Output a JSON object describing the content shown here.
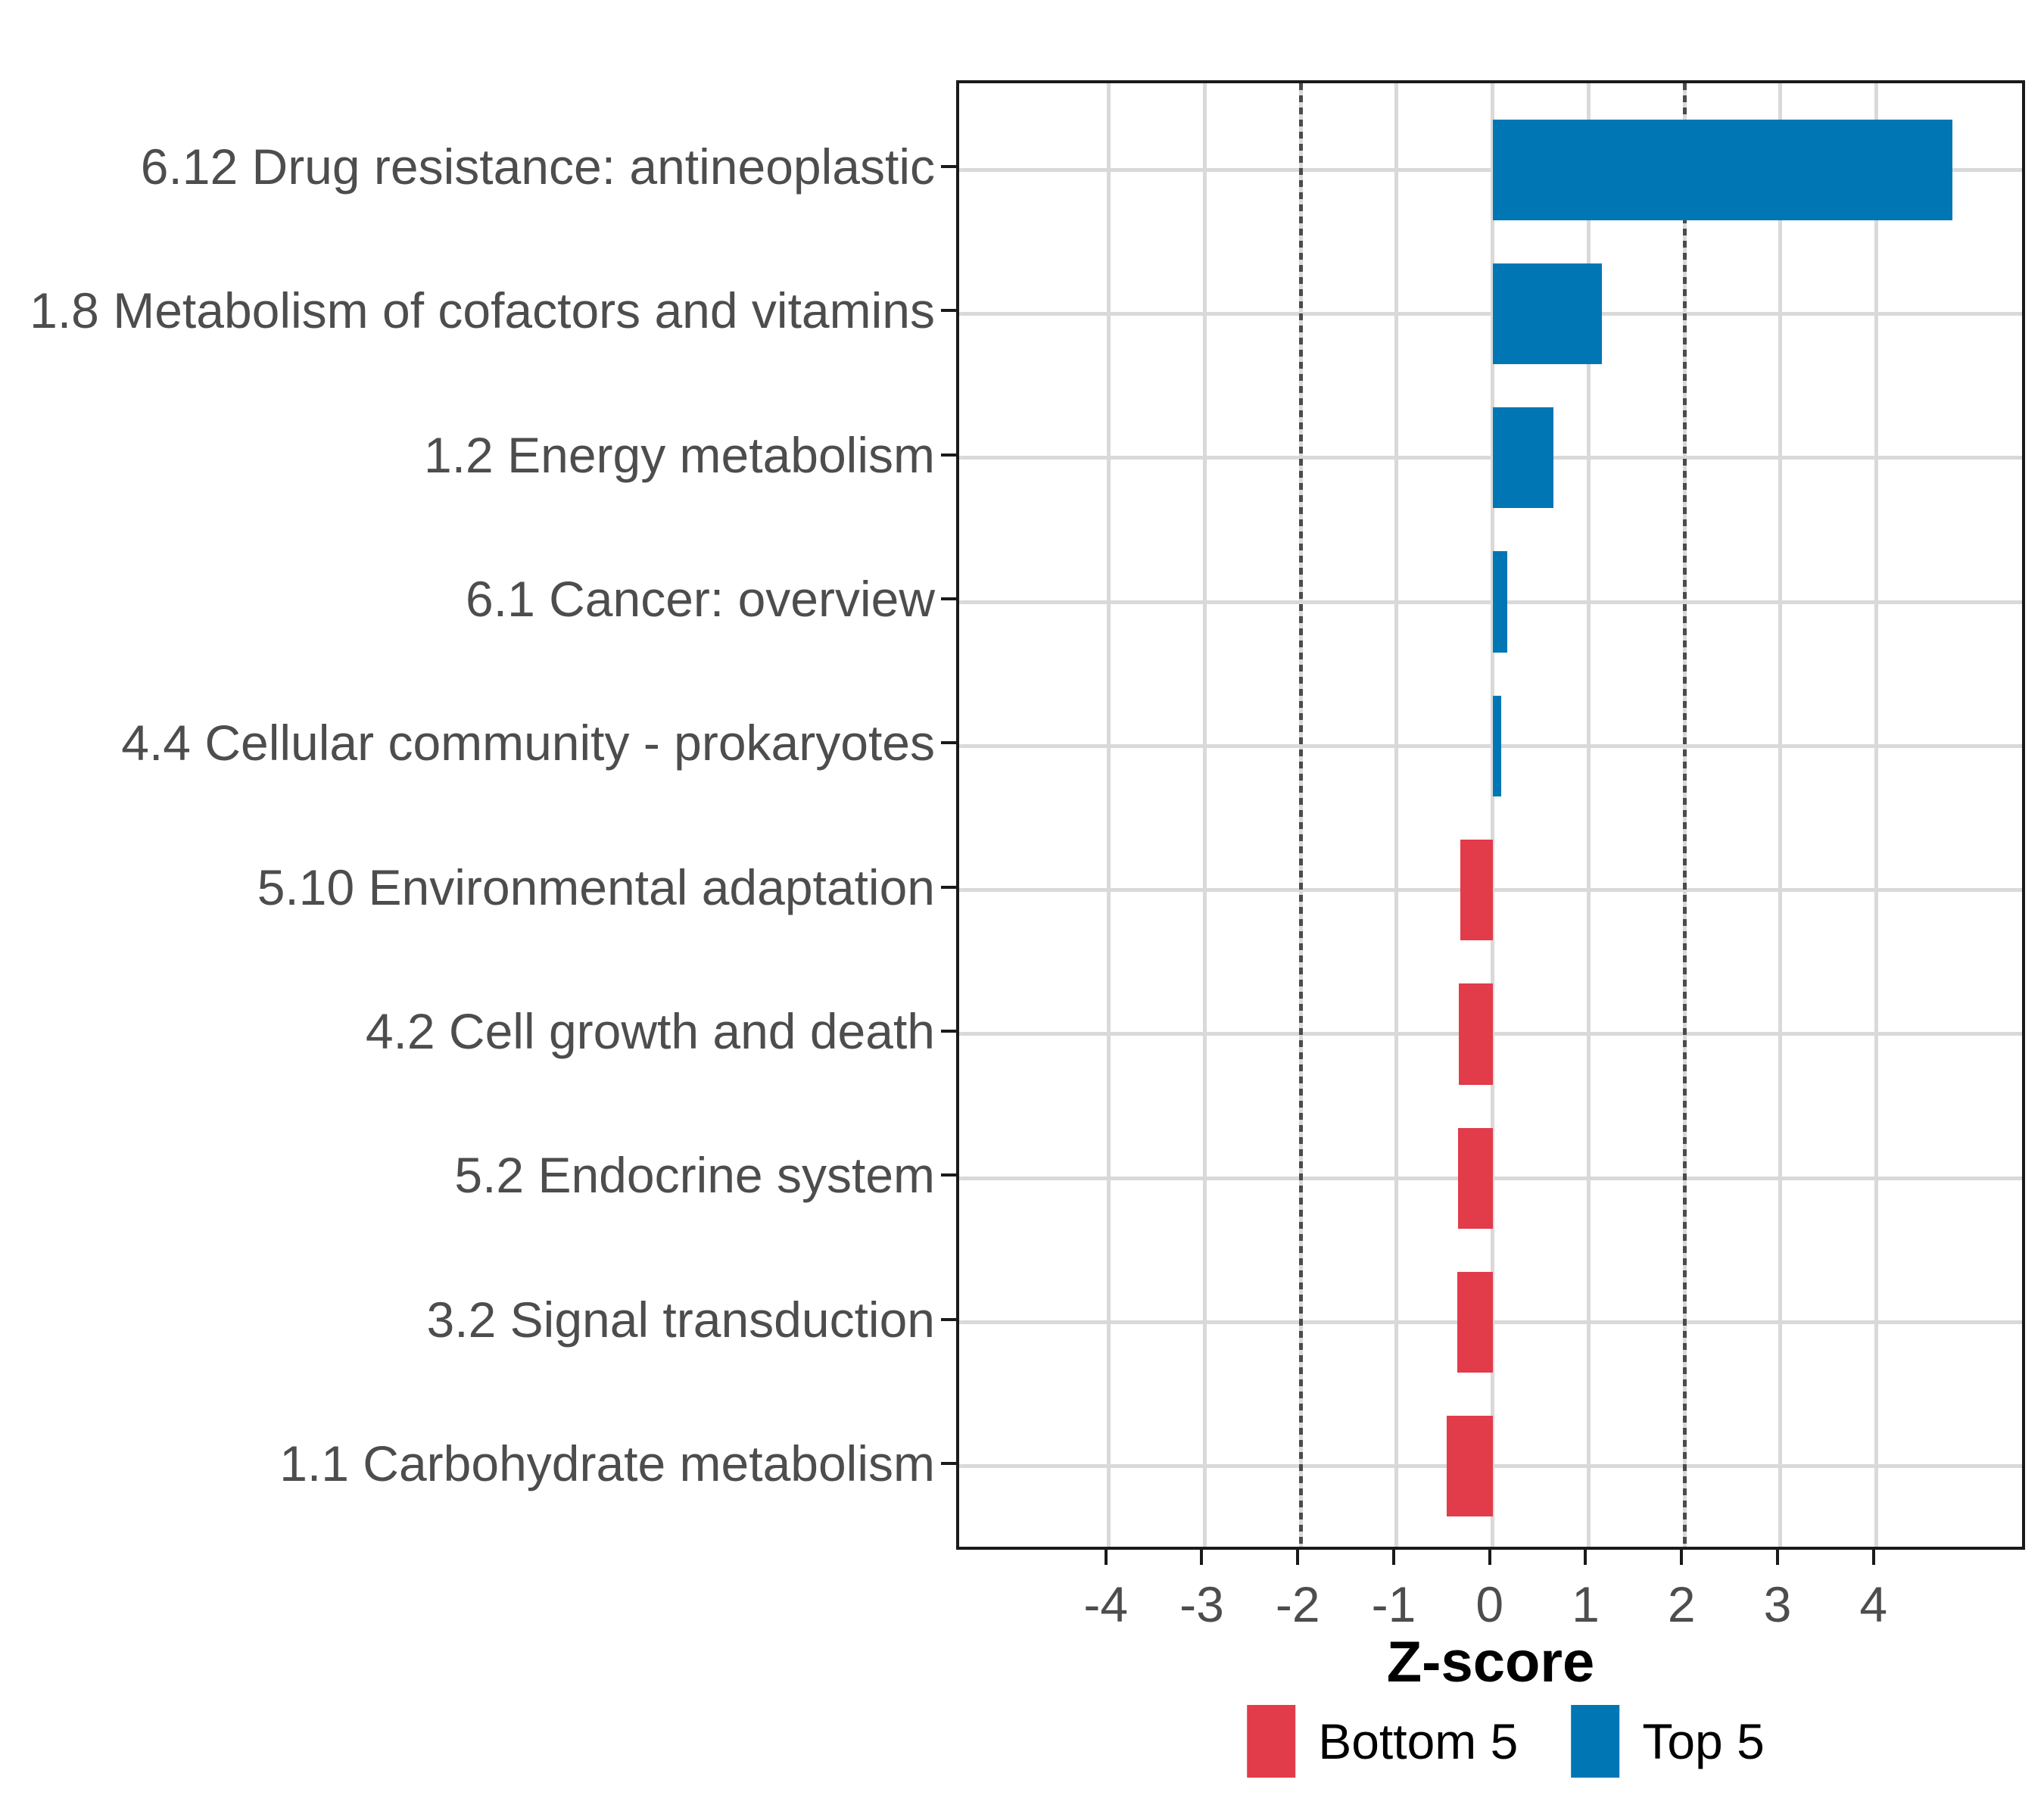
{
  "chart_data": {
    "type": "bar",
    "orientation": "horizontal",
    "title": "",
    "xlabel": "Z-score",
    "categories": [
      "6.12 Drug resistance: antineoplastic",
      "1.8 Metabolism of cofactors and vitamins",
      "1.2 Energy metabolism",
      "6.1 Cancer: overview",
      "4.4 Cellular community - prokaryotes",
      "5.10 Environmental adaptation",
      "4.2 Cell growth and death",
      "5.2 Endocrine system",
      "3.2 Signal transduction",
      "1.1 Carbohydrate metabolism"
    ],
    "values": [
      4.79,
      1.14,
      0.63,
      0.15,
      0.09,
      -0.34,
      -0.35,
      -0.36,
      -0.37,
      -0.48
    ],
    "groups": [
      "Top 5",
      "Top 5",
      "Top 5",
      "Top 5",
      "Top 5",
      "Bottom 5",
      "Bottom 5",
      "Bottom 5",
      "Bottom 5",
      "Bottom 5"
    ],
    "colors": {
      "Top 5": "#0076b5",
      "Bottom 5": "#e23b49"
    },
    "x_ticks": [
      -4,
      -3,
      -2,
      -1,
      0,
      1,
      2,
      3,
      4
    ],
    "xlim": [
      -5.56,
      5.58
    ],
    "reference_lines": [
      -2,
      2
    ],
    "bar_width_fraction": 0.7,
    "grid": true,
    "legend": {
      "position": "bottom",
      "entries": [
        {
          "label": "Bottom 5",
          "color": "#e23b49"
        },
        {
          "label": "Top 5",
          "color": "#0076b5"
        }
      ]
    },
    "style": {
      "grid_color": "#d9d9d9",
      "panel_border_color": "#1a1a1a",
      "axis_text_color": "#4d4d4d",
      "ref_line_color": "#4b4b4b"
    }
  }
}
